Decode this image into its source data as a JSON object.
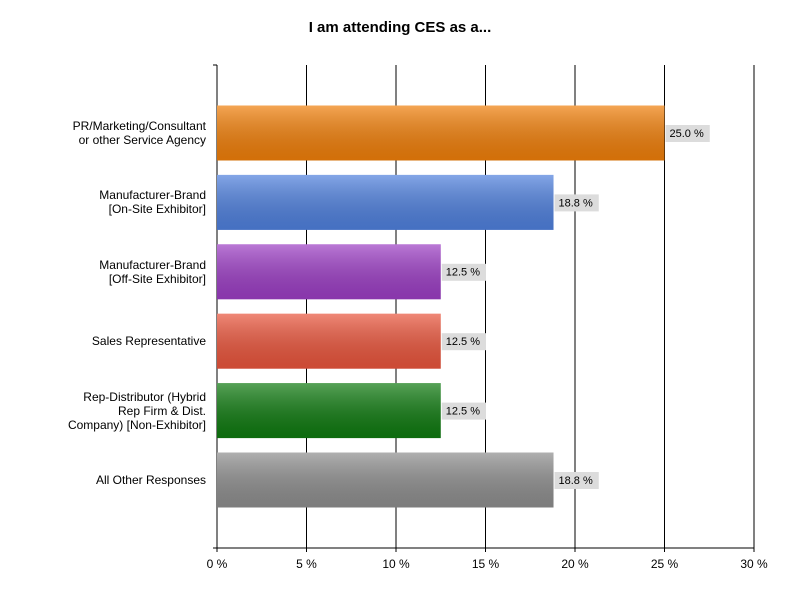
{
  "chart_data": {
    "type": "bar",
    "orientation": "horizontal",
    "title": "I am attending CES as a...",
    "categories": [
      "PR/Marketing/Consultant\nor other Service Agency",
      "Manufacturer-Brand\n[On-Site Exhibitor]",
      "Manufacturer-Brand\n[Off-Site Exhibitor]",
      "Sales Representative",
      "Rep-Distributor (Hybrid\nRep Firm & Dist.\nCompany) [Non-Exhibitor]",
      "All Other Responses"
    ],
    "values": [
      25.0,
      18.8,
      12.5,
      12.5,
      12.5,
      18.8
    ],
    "value_labels": [
      "25.0 %",
      "18.8 %",
      "12.5 %",
      "12.5 %",
      "12.5 %",
      "18.8 %"
    ],
    "colors": [
      "#f07f0a",
      "#4f80dd",
      "#9c3ec4",
      "#e9553c",
      "#0f7a10",
      "#8e8e8e"
    ],
    "xlim": [
      0,
      30
    ],
    "xticks": [
      {
        "value": 0,
        "label": "0 %"
      },
      {
        "value": 5,
        "label": "5 %"
      },
      {
        "value": 10,
        "label": "10 %"
      },
      {
        "value": 15,
        "label": "15 %"
      },
      {
        "value": 20,
        "label": "20 %"
      },
      {
        "value": 25,
        "label": "25 %"
      },
      {
        "value": 30,
        "label": "30 %"
      }
    ],
    "grid": true
  }
}
